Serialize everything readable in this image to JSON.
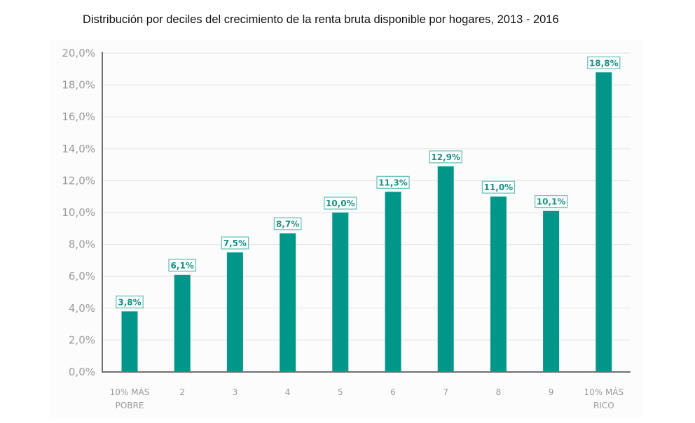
{
  "chart_data": {
    "type": "bar",
    "title": "Distribución por deciles del crecimiento de la renta bruta disponible por hogares, 2013 - 2016",
    "xlabel": "",
    "ylabel": "",
    "categories": [
      [
        "10% MÁS",
        "POBRE"
      ],
      [
        "2"
      ],
      [
        "3"
      ],
      [
        "4"
      ],
      [
        "5"
      ],
      [
        "6"
      ],
      [
        "7"
      ],
      [
        "8"
      ],
      [
        "9"
      ],
      [
        "10% MÁS",
        "RICO"
      ]
    ],
    "values": [
      3.8,
      6.1,
      7.5,
      8.7,
      10.0,
      11.3,
      12.9,
      11.0,
      10.1,
      18.8
    ],
    "data_labels": [
      "3,8%",
      "6,1%",
      "7,5%",
      "8,7%",
      "10,0%",
      "11,3%",
      "12,9%",
      "11,0%",
      "10,1%",
      "18,8%"
    ],
    "ylim": [
      0,
      20
    ],
    "yticks": [
      0,
      2,
      4,
      6,
      8,
      10,
      12,
      14,
      16,
      18,
      20
    ],
    "ytick_labels": [
      "0,0%",
      "2,0%",
      "4,0%",
      "6,0%",
      "8,0%",
      "10,0%",
      "12,0%",
      "14,0%",
      "16,0%",
      "18,0%",
      "20,0%"
    ],
    "grid": true,
    "legend": "none",
    "colors": {
      "bar": "#00968a",
      "label": "#1a8f86",
      "label_border": "#6cc3bb",
      "grid": "#e6e6e6",
      "axis": "#707070",
      "tick_text": "#9a9a9a"
    }
  }
}
